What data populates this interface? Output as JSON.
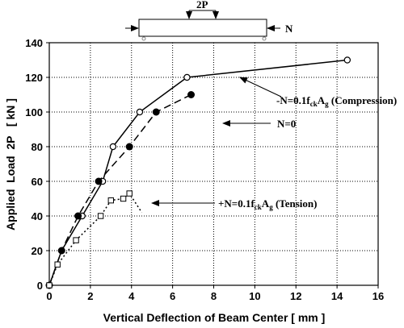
{
  "chart_data": {
    "type": "line",
    "xlabel": "Vertical Deflection of Beam Center   [ mm ]",
    "ylabel": "Applied  Load  2P   [ kN ]",
    "xlim": [
      0,
      16
    ],
    "ylim": [
      0,
      140
    ],
    "xticks": [
      "0",
      "2",
      "4",
      "6",
      "8",
      "10",
      "12",
      "14",
      "16"
    ],
    "yticks": [
      "0",
      "20",
      "40",
      "60",
      "80",
      "100",
      "120",
      "140"
    ],
    "grid": true,
    "series": [
      {
        "name": "-N=0.1fckAg (Compression)",
        "line": "solid",
        "marker": "open-circle",
        "x": [
          0,
          0.6,
          1.6,
          2.6,
          3.1,
          4.4,
          6.7,
          14.5
        ],
        "y": [
          0,
          20,
          40,
          60,
          80,
          100,
          120,
          130
        ]
      },
      {
        "name": "N=0",
        "line": "dashed",
        "marker": "filled-circle",
        "x": [
          0,
          0.6,
          1.4,
          2.4,
          3.9,
          5.2,
          6.9
        ],
        "y": [
          0,
          20,
          40,
          60,
          80,
          100,
          110
        ]
      },
      {
        "name": "+N=0.1fckAg (Tension)",
        "line": "dotted",
        "marker": "open-square",
        "x": [
          0,
          0.4,
          1.3,
          2.5,
          3.0,
          3.6,
          3.9,
          4.5
        ],
        "y": [
          0,
          12,
          26,
          40,
          49,
          50,
          53,
          42
        ]
      }
    ],
    "annotations": {
      "compression": {
        "prefix": "-N=0.1f",
        "sub1": "ck",
        "mid": "A",
        "sub2": "g",
        "suffix": " (Compression)"
      },
      "zero": {
        "text": "N=0"
      },
      "tension": {
        "prefix": "+N=0.1f",
        "sub1": "ck",
        "mid": "A",
        "sub2": "g",
        "suffix": " (Tension)"
      }
    },
    "schematic": {
      "load_label": "2P",
      "axial_label": "N"
    }
  }
}
